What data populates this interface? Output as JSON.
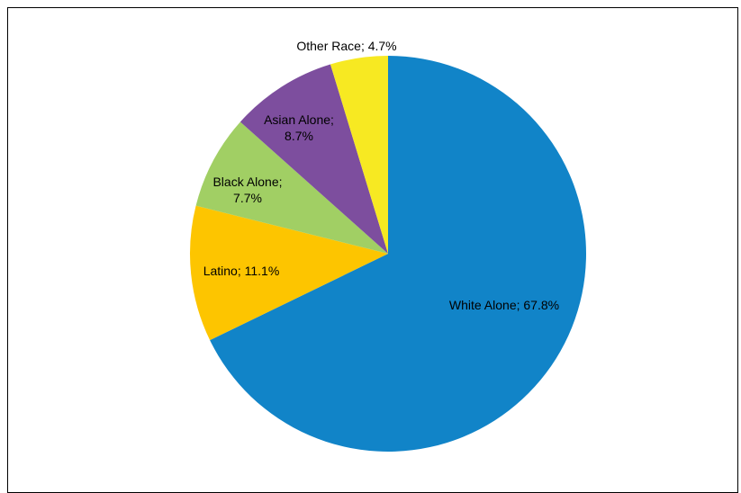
{
  "chart_data": {
    "type": "pie",
    "title": "",
    "start_angle_deg": 0,
    "direction": "clockwise",
    "slices": [
      {
        "label": "White Alone; 67.8%",
        "name": "White Alone",
        "value": 67.8,
        "color": "#1184C8",
        "label_lines": [
          "White Alone; 67.8%"
        ]
      },
      {
        "label": "Latino; 11.1%",
        "name": "Latino",
        "value": 11.1,
        "color": "#FDC500",
        "label_lines": [
          "Latino; 11.1%"
        ]
      },
      {
        "label": "Black Alone; 7.7%",
        "name": "Black  Alone",
        "value": 7.7,
        "color": "#A1CF64",
        "label_lines": [
          "Black  Alone;",
          "7.7%"
        ]
      },
      {
        "label": "Asian Alone; 8.7%",
        "name": "Asian Alone",
        "value": 8.7,
        "color": "#7D4E9E",
        "label_lines": [
          "Asian Alone;",
          "8.7%"
        ]
      },
      {
        "label": "Other Race; 4.7%",
        "name": "Other Race",
        "value": 4.7,
        "color": "#F7E922",
        "label_lines": [
          "Other Race; 4.7%"
        ]
      }
    ]
  }
}
